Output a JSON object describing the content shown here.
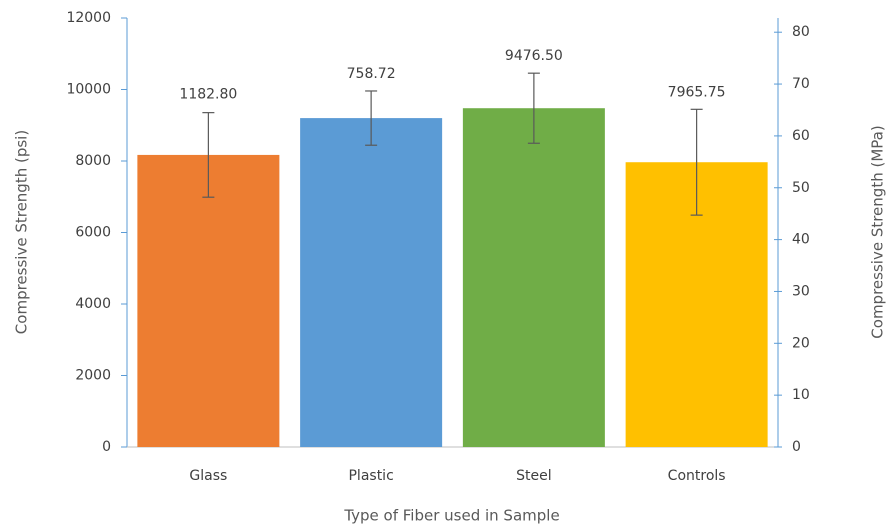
{
  "chart_data": {
    "type": "bar",
    "x_label": "Type of Fiber used in Sample",
    "y_label": "Compressive Strength (psi)",
    "y2_label": "Compressive Strength (MPa)",
    "categories": [
      "Glass",
      "Plastic",
      "Steel",
      "Controls"
    ],
    "values": [
      8170,
      9200,
      9476.5,
      7965.75
    ],
    "errors": [
      1182.8,
      758.72,
      980,
      1480
    ],
    "colors": [
      "#ed7d31",
      "#5b9bd5",
      "#70ad47",
      "#ffc000"
    ],
    "annotations": [
      "1182.80",
      "758.72",
      "9476.50",
      "7965.75"
    ],
    "ylim": [
      0,
      12000
    ],
    "yticks": [
      0,
      2000,
      4000,
      6000,
      8000,
      10000,
      12000
    ],
    "y2lim": [
      0,
      82.74
    ],
    "y2ticks": [
      0,
      10,
      20,
      30,
      40,
      50,
      60,
      70,
      80
    ],
    "axis_color": "#5b9bd5",
    "error_color": "#595959"
  }
}
